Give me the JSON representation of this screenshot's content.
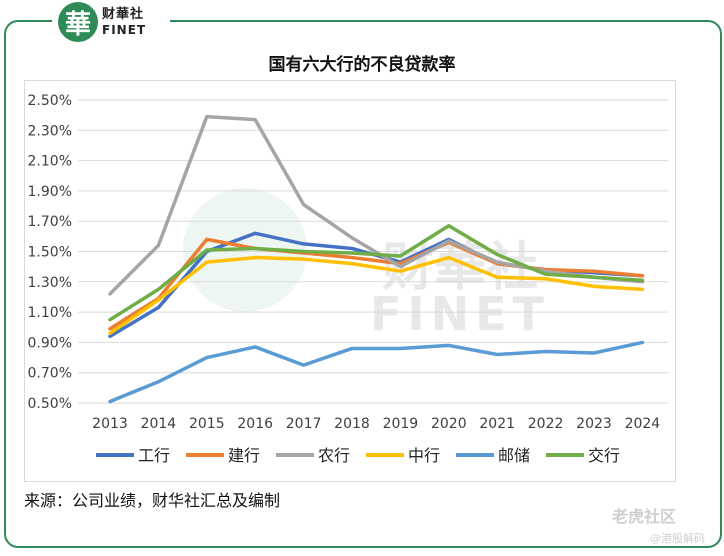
{
  "logo": {
    "seal_text": "華",
    "cn": "财華社",
    "en": "FINET"
  },
  "watermark": {
    "cn": "财華社",
    "en": "FINET",
    "brand": "老虎社区",
    "sub": "@港股解码"
  },
  "footer": {
    "source": "来源：公司业绩，财华社汇总及编制"
  },
  "colors": {
    "frame": "#2e8b57",
    "grid": "#d9d9d9"
  },
  "chart_data": {
    "type": "line",
    "title": "国有六大行的不良贷款率",
    "xlabel": "",
    "ylabel": "",
    "categories": [
      "2013",
      "2014",
      "2015",
      "2016",
      "2017",
      "2018",
      "2019",
      "2020",
      "2021",
      "2022",
      "2023",
      "2024"
    ],
    "ylim": [
      0.5,
      2.5
    ],
    "yticks": [
      "0.50%",
      "0.70%",
      "0.90%",
      "1.10%",
      "1.30%",
      "1.50%",
      "1.70%",
      "1.90%",
      "2.10%",
      "2.30%",
      "2.50%"
    ],
    "grid": true,
    "legend_position": "bottom",
    "series": [
      {
        "name": "工行",
        "color": "#4472c4",
        "values": [
          0.94,
          1.13,
          1.5,
          1.62,
          1.55,
          1.52,
          1.43,
          1.58,
          1.42,
          1.38,
          1.36,
          1.34
        ]
      },
      {
        "name": "建行",
        "color": "#ed7d31",
        "values": [
          0.99,
          1.19,
          1.58,
          1.52,
          1.49,
          1.46,
          1.42,
          1.56,
          1.42,
          1.38,
          1.37,
          1.34
        ]
      },
      {
        "name": "农行",
        "color": "#a5a5a5",
        "values": [
          1.22,
          1.54,
          2.39,
          2.37,
          1.81,
          1.59,
          1.4,
          1.57,
          1.43,
          1.37,
          1.33,
          1.3
        ]
      },
      {
        "name": "中行",
        "color": "#ffc000",
        "values": [
          0.96,
          1.18,
          1.43,
          1.46,
          1.45,
          1.42,
          1.37,
          1.46,
          1.33,
          1.32,
          1.27,
          1.25
        ]
      },
      {
        "name": "邮储",
        "color": "#5b9bd5",
        "values": [
          0.51,
          0.64,
          0.8,
          0.87,
          0.75,
          0.86,
          0.86,
          0.88,
          0.82,
          0.84,
          0.83,
          0.9
        ]
      },
      {
        "name": "交行",
        "color": "#70ad47",
        "values": [
          1.05,
          1.25,
          1.51,
          1.52,
          1.5,
          1.49,
          1.47,
          1.67,
          1.48,
          1.35,
          1.33,
          1.31
        ]
      }
    ]
  }
}
